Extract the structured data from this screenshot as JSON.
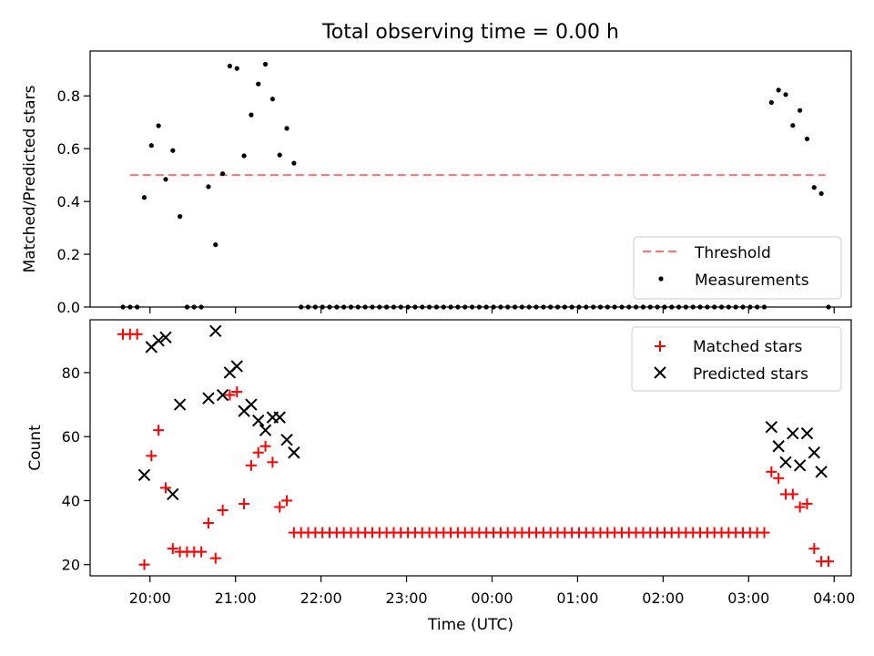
{
  "title": "Total observing time = 0.00 h",
  "chart_data": [
    {
      "type": "scatter",
      "panel": "top",
      "ylabel": "Matched/Predicted stars",
      "xlim": [
        "19:18",
        "04:12"
      ],
      "ylim": [
        0,
        0.97
      ],
      "yticks": [
        0.0,
        0.2,
        0.4,
        0.6,
        0.8
      ],
      "ytick_labels": [
        "0.0",
        "0.2",
        "0.4",
        "0.6",
        "0.8"
      ],
      "legend_position": "lower-right",
      "threshold": {
        "name": "Threshold",
        "y": 0.5,
        "x_start": "19:46",
        "x_end": "03:54",
        "color": "#ff7070",
        "style": "dashed"
      },
      "series": [
        {
          "name": "Measurements",
          "color": "#000000",
          "marker": "dot",
          "points": [
            [
              "19:41",
              0
            ],
            [
              "19:46",
              0
            ],
            [
              "19:51",
              0
            ],
            [
              "19:56",
              0.415
            ],
            [
              "20:01",
              0.612
            ],
            [
              "20:06",
              0.687
            ],
            [
              "20:11",
              0.484
            ],
            [
              "20:16",
              0.593
            ],
            [
              "20:21",
              0.343
            ],
            [
              "20:26",
              0
            ],
            [
              "20:31",
              0
            ],
            [
              "20:36",
              0
            ],
            [
              "20:41",
              0.456
            ],
            [
              "20:46",
              0.236
            ],
            [
              "20:51",
              0.505
            ],
            [
              "20:56",
              0.913
            ],
            [
              "21:01",
              0.904
            ],
            [
              "21:06",
              0.573
            ],
            [
              "21:11",
              0.728
            ],
            [
              "21:16",
              0.845
            ],
            [
              "21:21",
              0.92
            ],
            [
              "21:26",
              0.788
            ],
            [
              "21:31",
              0.576
            ],
            [
              "21:36",
              0.677
            ],
            [
              "21:41",
              0.545
            ],
            [
              "21:46",
              0
            ],
            [
              "21:51",
              0
            ],
            [
              "21:56",
              0
            ],
            [
              "22:01",
              0
            ],
            [
              "22:06",
              0
            ],
            [
              "22:11",
              0
            ],
            [
              "22:16",
              0
            ],
            [
              "22:21",
              0
            ],
            [
              "22:26",
              0
            ],
            [
              "22:31",
              0
            ],
            [
              "22:36",
              0
            ],
            [
              "22:41",
              0
            ],
            [
              "22:46",
              0
            ],
            [
              "22:51",
              0
            ],
            [
              "22:56",
              0
            ],
            [
              "23:01",
              0
            ],
            [
              "23:06",
              0
            ],
            [
              "23:11",
              0
            ],
            [
              "23:16",
              0
            ],
            [
              "23:21",
              0
            ],
            [
              "23:26",
              0
            ],
            [
              "23:31",
              0
            ],
            [
              "23:36",
              0
            ],
            [
              "23:41",
              0
            ],
            [
              "23:46",
              0
            ],
            [
              "23:51",
              0
            ],
            [
              "23:56",
              0
            ],
            [
              "00:01",
              0
            ],
            [
              "00:06",
              0
            ],
            [
              "00:11",
              0
            ],
            [
              "00:16",
              0
            ],
            [
              "00:21",
              0
            ],
            [
              "00:26",
              0
            ],
            [
              "00:31",
              0
            ],
            [
              "00:36",
              0
            ],
            [
              "00:41",
              0
            ],
            [
              "00:46",
              0
            ],
            [
              "00:51",
              0
            ],
            [
              "00:56",
              0
            ],
            [
              "01:01",
              0
            ],
            [
              "01:06",
              0
            ],
            [
              "01:11",
              0
            ],
            [
              "01:16",
              0
            ],
            [
              "01:21",
              0
            ],
            [
              "01:26",
              0
            ],
            [
              "01:31",
              0
            ],
            [
              "01:36",
              0
            ],
            [
              "01:41",
              0
            ],
            [
              "01:46",
              0
            ],
            [
              "01:51",
              0
            ],
            [
              "01:56",
              0
            ],
            [
              "02:01",
              0
            ],
            [
              "02:06",
              0
            ],
            [
              "02:11",
              0
            ],
            [
              "02:16",
              0
            ],
            [
              "02:21",
              0
            ],
            [
              "02:26",
              0
            ],
            [
              "02:31",
              0
            ],
            [
              "02:36",
              0
            ],
            [
              "02:41",
              0
            ],
            [
              "02:46",
              0
            ],
            [
              "02:51",
              0
            ],
            [
              "02:56",
              0
            ],
            [
              "03:01",
              0
            ],
            [
              "03:06",
              0
            ],
            [
              "03:11",
              0
            ],
            [
              "03:16",
              0.775
            ],
            [
              "03:21",
              0.822
            ],
            [
              "03:26",
              0.805
            ],
            [
              "03:31",
              0.688
            ],
            [
              "03:36",
              0.745
            ],
            [
              "03:41",
              0.637
            ],
            [
              "03:46",
              0.453
            ],
            [
              "03:51",
              0.43
            ],
            [
              "03:56",
              0
            ]
          ]
        }
      ]
    },
    {
      "type": "scatter",
      "panel": "bottom",
      "ylabel": "Count",
      "xlabel": "Time (UTC)",
      "xlim": [
        "19:18",
        "04:12"
      ],
      "ylim": [
        16.5,
        96.5
      ],
      "yticks": [
        20,
        40,
        60,
        80
      ],
      "ytick_labels": [
        "20",
        "40",
        "60",
        "80"
      ],
      "xticks": [
        "20:00",
        "21:00",
        "22:00",
        "23:00",
        "00:00",
        "01:00",
        "02:00",
        "03:00",
        "04:00"
      ],
      "legend_position": "top-right",
      "series": [
        {
          "name": "Matched stars",
          "color": "#ff0000",
          "marker": "plus",
          "points": [
            [
              "19:41",
              92
            ],
            [
              "19:46",
              92
            ],
            [
              "19:51",
              92
            ],
            [
              "19:56",
              20
            ],
            [
              "20:01",
              54
            ],
            [
              "20:06",
              62
            ],
            [
              "20:11",
              44
            ],
            [
              "20:16",
              25
            ],
            [
              "20:21",
              24
            ],
            [
              "20:26",
              24
            ],
            [
              "20:31",
              24
            ],
            [
              "20:36",
              24
            ],
            [
              "20:41",
              33
            ],
            [
              "20:46",
              22
            ],
            [
              "20:51",
              37
            ],
            [
              "20:56",
              73
            ],
            [
              "21:01",
              74
            ],
            [
              "21:06",
              39
            ],
            [
              "21:11",
              51
            ],
            [
              "21:16",
              55
            ],
            [
              "21:21",
              57
            ],
            [
              "21:26",
              52
            ],
            [
              "21:31",
              38
            ],
            [
              "21:36",
              40
            ],
            [
              "21:41",
              30
            ],
            [
              "21:46",
              30
            ],
            [
              "21:51",
              30
            ],
            [
              "21:56",
              30
            ],
            [
              "22:01",
              30
            ],
            [
              "22:06",
              30
            ],
            [
              "22:11",
              30
            ],
            [
              "22:16",
              30
            ],
            [
              "22:21",
              30
            ],
            [
              "22:26",
              30
            ],
            [
              "22:31",
              30
            ],
            [
              "22:36",
              30
            ],
            [
              "22:41",
              30
            ],
            [
              "22:46",
              30
            ],
            [
              "22:51",
              30
            ],
            [
              "22:56",
              30
            ],
            [
              "23:01",
              30
            ],
            [
              "23:06",
              30
            ],
            [
              "23:11",
              30
            ],
            [
              "23:16",
              30
            ],
            [
              "23:21",
              30
            ],
            [
              "23:26",
              30
            ],
            [
              "23:31",
              30
            ],
            [
              "23:36",
              30
            ],
            [
              "23:41",
              30
            ],
            [
              "23:46",
              30
            ],
            [
              "23:51",
              30
            ],
            [
              "23:56",
              30
            ],
            [
              "00:01",
              30
            ],
            [
              "00:06",
              30
            ],
            [
              "00:11",
              30
            ],
            [
              "00:16",
              30
            ],
            [
              "00:21",
              30
            ],
            [
              "00:26",
              30
            ],
            [
              "00:31",
              30
            ],
            [
              "00:36",
              30
            ],
            [
              "00:41",
              30
            ],
            [
              "00:46",
              30
            ],
            [
              "00:51",
              30
            ],
            [
              "00:56",
              30
            ],
            [
              "01:01",
              30
            ],
            [
              "01:06",
              30
            ],
            [
              "01:11",
              30
            ],
            [
              "01:16",
              30
            ],
            [
              "01:21",
              30
            ],
            [
              "01:26",
              30
            ],
            [
              "01:31",
              30
            ],
            [
              "01:36",
              30
            ],
            [
              "01:41",
              30
            ],
            [
              "01:46",
              30
            ],
            [
              "01:51",
              30
            ],
            [
              "01:56",
              30
            ],
            [
              "02:01",
              30
            ],
            [
              "02:06",
              30
            ],
            [
              "02:11",
              30
            ],
            [
              "02:16",
              30
            ],
            [
              "02:21",
              30
            ],
            [
              "02:26",
              30
            ],
            [
              "02:31",
              30
            ],
            [
              "02:36",
              30
            ],
            [
              "02:41",
              30
            ],
            [
              "02:46",
              30
            ],
            [
              "02:51",
              30
            ],
            [
              "02:56",
              30
            ],
            [
              "03:01",
              30
            ],
            [
              "03:06",
              30
            ],
            [
              "03:11",
              30
            ],
            [
              "03:16",
              49
            ],
            [
              "03:21",
              47
            ],
            [
              "03:26",
              42
            ],
            [
              "03:31",
              42
            ],
            [
              "03:36",
              38
            ],
            [
              "03:41",
              39
            ],
            [
              "03:46",
              25
            ],
            [
              "03:51",
              21
            ],
            [
              "03:56",
              21
            ]
          ]
        },
        {
          "name": "Predicted stars",
          "color": "#000000",
          "marker": "x",
          "points": [
            [
              "19:56",
              48
            ],
            [
              "20:01",
              88
            ],
            [
              "20:06",
              90
            ],
            [
              "20:11",
              91
            ],
            [
              "20:16",
              42
            ],
            [
              "20:21",
              70
            ],
            [
              "20:41",
              72
            ],
            [
              "20:46",
              93
            ],
            [
              "20:51",
              73
            ],
            [
              "20:56",
              80
            ],
            [
              "21:01",
              82
            ],
            [
              "21:06",
              68
            ],
            [
              "21:11",
              70
            ],
            [
              "21:16",
              65
            ],
            [
              "21:21",
              62
            ],
            [
              "21:26",
              66
            ],
            [
              "21:31",
              66
            ],
            [
              "21:36",
              59
            ],
            [
              "21:41",
              55
            ],
            [
              "03:16",
              63
            ],
            [
              "03:21",
              57
            ],
            [
              "03:26",
              52
            ],
            [
              "03:31",
              61
            ],
            [
              "03:36",
              51
            ],
            [
              "03:41",
              61
            ],
            [
              "03:46",
              55
            ],
            [
              "03:51",
              49
            ]
          ]
        }
      ]
    }
  ]
}
